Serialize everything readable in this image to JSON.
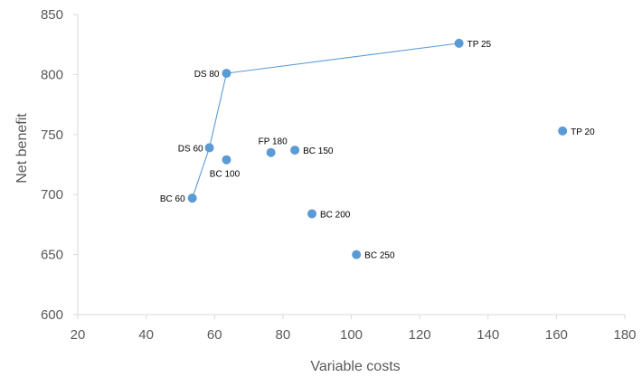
{
  "chart_data": {
    "type": "scatter",
    "title": "",
    "xlabel": "Variable costs",
    "ylabel": "Net benefit",
    "xlim": [
      20,
      180
    ],
    "ylim": [
      600,
      850
    ],
    "xticks": [
      20,
      40,
      60,
      80,
      100,
      120,
      140,
      160,
      180
    ],
    "yticks": [
      600,
      650,
      700,
      750,
      800,
      850
    ],
    "grid": false,
    "legend": "none",
    "points": [
      {
        "label": "TP 25",
        "x": 131.5,
        "y": 826
      },
      {
        "label": "DS 80",
        "x": 63.5,
        "y": 801
      },
      {
        "label": "TP 20",
        "x": 161.8,
        "y": 753
      },
      {
        "label": "DS 60",
        "x": 58.5,
        "y": 739
      },
      {
        "label": "BC 150",
        "x": 83.5,
        "y": 737
      },
      {
        "label": "FP 180",
        "x": 76.5,
        "y": 735
      },
      {
        "label": "BC 100",
        "x": 63.5,
        "y": 729
      },
      {
        "label": "BC 60",
        "x": 53.5,
        "y": 697
      },
      {
        "label": "BC 200",
        "x": 88.5,
        "y": 684
      },
      {
        "label": "BC 250",
        "x": 101.5,
        "y": 650
      }
    ],
    "frontier": [
      "BC 60",
      "DS 60",
      "DS 80",
      "TP 25"
    ],
    "colors": {
      "marker": "#5b9bd5",
      "frontier_line": "#5b9bd5",
      "axis": "#d9d9d9",
      "text": "#595959"
    }
  }
}
